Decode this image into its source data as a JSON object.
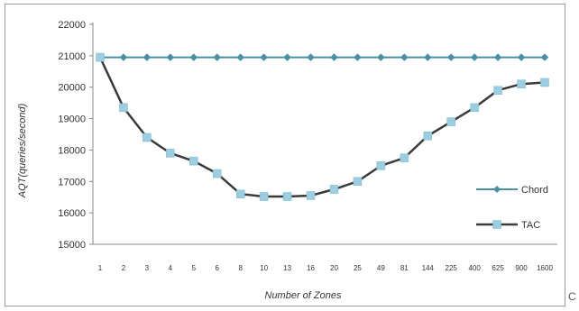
{
  "chart_data": {
    "type": "line",
    "xlabel": "Number of Zones",
    "ylabel": "AQT(queries/second)",
    "categories": [
      "1",
      "2",
      "3",
      "4",
      "5",
      "6",
      "8",
      "10",
      "13",
      "16",
      "20",
      "25",
      "49",
      "81",
      "144",
      "225",
      "400",
      "625",
      "900",
      "1600"
    ],
    "ylim": [
      15000,
      22000
    ],
    "yticks": [
      15000,
      16000,
      17000,
      18000,
      19000,
      20000,
      21000,
      22000
    ],
    "grid": false,
    "legend_position": "right",
    "series": [
      {
        "name": "Chord",
        "color": "#4a90a4",
        "marker": "diamond",
        "values": [
          20950,
          20950,
          20950,
          20950,
          20950,
          20950,
          20950,
          20950,
          20950,
          20950,
          20950,
          20950,
          20950,
          20950,
          20950,
          20950,
          20950,
          20950,
          20950,
          20950
        ]
      },
      {
        "name": "TAC",
        "color": "#3a3a3a",
        "marker_color": "#9ccde0",
        "marker": "square",
        "values": [
          20950,
          19350,
          18400,
          17900,
          17650,
          17250,
          16600,
          16520,
          16520,
          16550,
          16750,
          17000,
          17500,
          17750,
          18450,
          18900,
          19350,
          19900,
          20100,
          20150
        ]
      }
    ]
  },
  "edge_glyph": "C"
}
